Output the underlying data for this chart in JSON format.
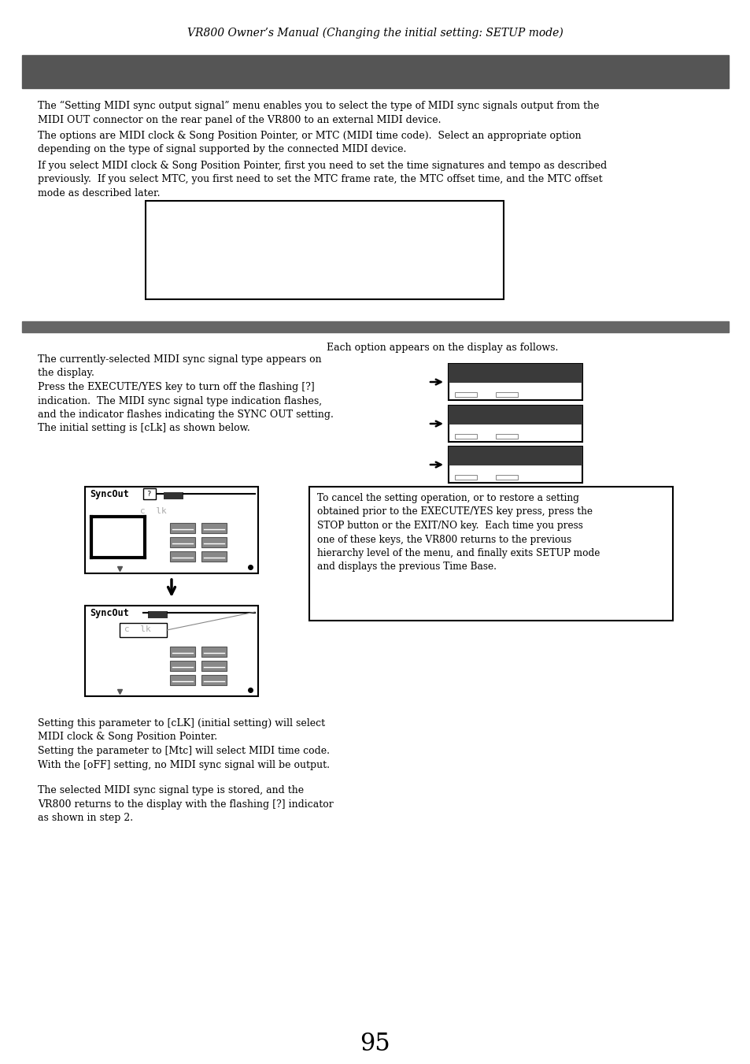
{
  "page_title": "VR800 Owner’s Manual (Changing the initial setting: SETUP mode)",
  "page_number": "95",
  "header_bar_color": "#555555",
  "second_bar_color": "#666666",
  "background_color": "#ffffff",
  "body_font_size": 9.0,
  "title_font_size": 10.5,
  "para1": "The “Setting MIDI sync output signal” menu enables you to select the type of MIDI sync signals output from the\nMIDI OUT connector on the rear panel of the VR800 to an external MIDI device.",
  "para2": "The options are MIDI clock & Song Position Pointer, or MTC (MIDI time code).  Select an appropriate option\ndepending on the type of signal supported by the connected MIDI device.",
  "para3": "If you select MIDI clock & Song Position Pointer, first you need to set the time signatures and tempo as described\npreviously.  If you select MTC, you first need to set the MTC frame rate, the MTC offset time, and the MTC offset\nmode as described later.",
  "step2_left_text": "The currently-selected MIDI sync signal type appears on\nthe display.\nPress the EXECUTE/YES key to turn off the flashing [?]\nindication.  The MIDI sync signal type indication flashes,\nand the indicator flashes indicating the SYNC OUT setting.\nThe initial setting is [cLk] as shown below.",
  "right_caption": "Each option appears on the display as follows.",
  "cancel_box_text": "To cancel the setting operation, or to restore a setting\nobtained prior to the EXECUTE/YES key press, press the\nSTOP button or the EXIT/NO key.  Each time you press\none of these keys, the VR800 returns to the previous\nhierarchy level of the menu, and finally exits SETUP mode\nand displays the previous Time Base.",
  "step3_left_text": "Setting this parameter to [cLK] (initial setting) will select\nMIDI clock & Song Position Pointer.\nSetting the parameter to [Mtc] will select MIDI time code.\nWith the [oFF] setting, no MIDI sync signal will be output.",
  "step4_left_text": "The selected MIDI sync signal type is stored, and the\nVR800 returns to the display with the flashing [?] indicator\nas shown in step 2."
}
